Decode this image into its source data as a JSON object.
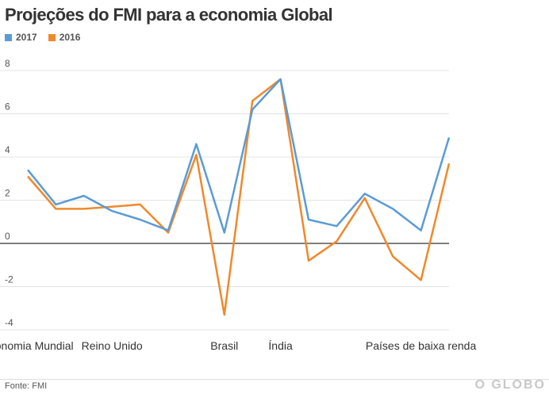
{
  "header": {
    "title": "Projeções do FMI para a economia Global"
  },
  "footer": {
    "source": "Fonte: FMI",
    "brand": "O GLOBO"
  },
  "chart_data": {
    "type": "line",
    "title": "Projeções do FMI para a economia Global",
    "xlabel": "",
    "ylabel": "",
    "ylim": [
      -4,
      8
    ],
    "yticks": [
      -4,
      -2,
      0,
      2,
      4,
      6,
      8
    ],
    "grid": true,
    "legend": "top-left",
    "categories": [
      "Economia Mundial",
      "",
      "",
      "Reino Unido",
      "",
      "",
      "",
      "Brasil",
      "",
      "Índia",
      "",
      "",
      "",
      "",
      "Países de baixa renda",
      ""
    ],
    "visible_x_labels": [
      {
        "index": 0,
        "text": "Economia Mundial"
      },
      {
        "index": 3,
        "text": "Reino Unido"
      },
      {
        "index": 7,
        "text": "Brasil"
      },
      {
        "index": 9,
        "text": "Índia"
      },
      {
        "index": 14,
        "text": "Países de baixa renda"
      }
    ],
    "series": [
      {
        "name": "2017",
        "color": "#5b9bd5",
        "values": [
          3.4,
          1.8,
          2.2,
          1.5,
          1.1,
          0.6,
          4.6,
          0.5,
          6.2,
          7.6,
          1.1,
          0.8,
          2.3,
          1.6,
          0.6,
          4.9
        ]
      },
      {
        "name": "2016",
        "color": "#f0892b",
        "values": [
          3.1,
          1.6,
          1.6,
          1.7,
          1.8,
          0.5,
          4.1,
          -3.3,
          6.6,
          7.6,
          -0.8,
          0.1,
          2.1,
          -0.6,
          -1.7,
          3.7
        ]
      }
    ]
  }
}
